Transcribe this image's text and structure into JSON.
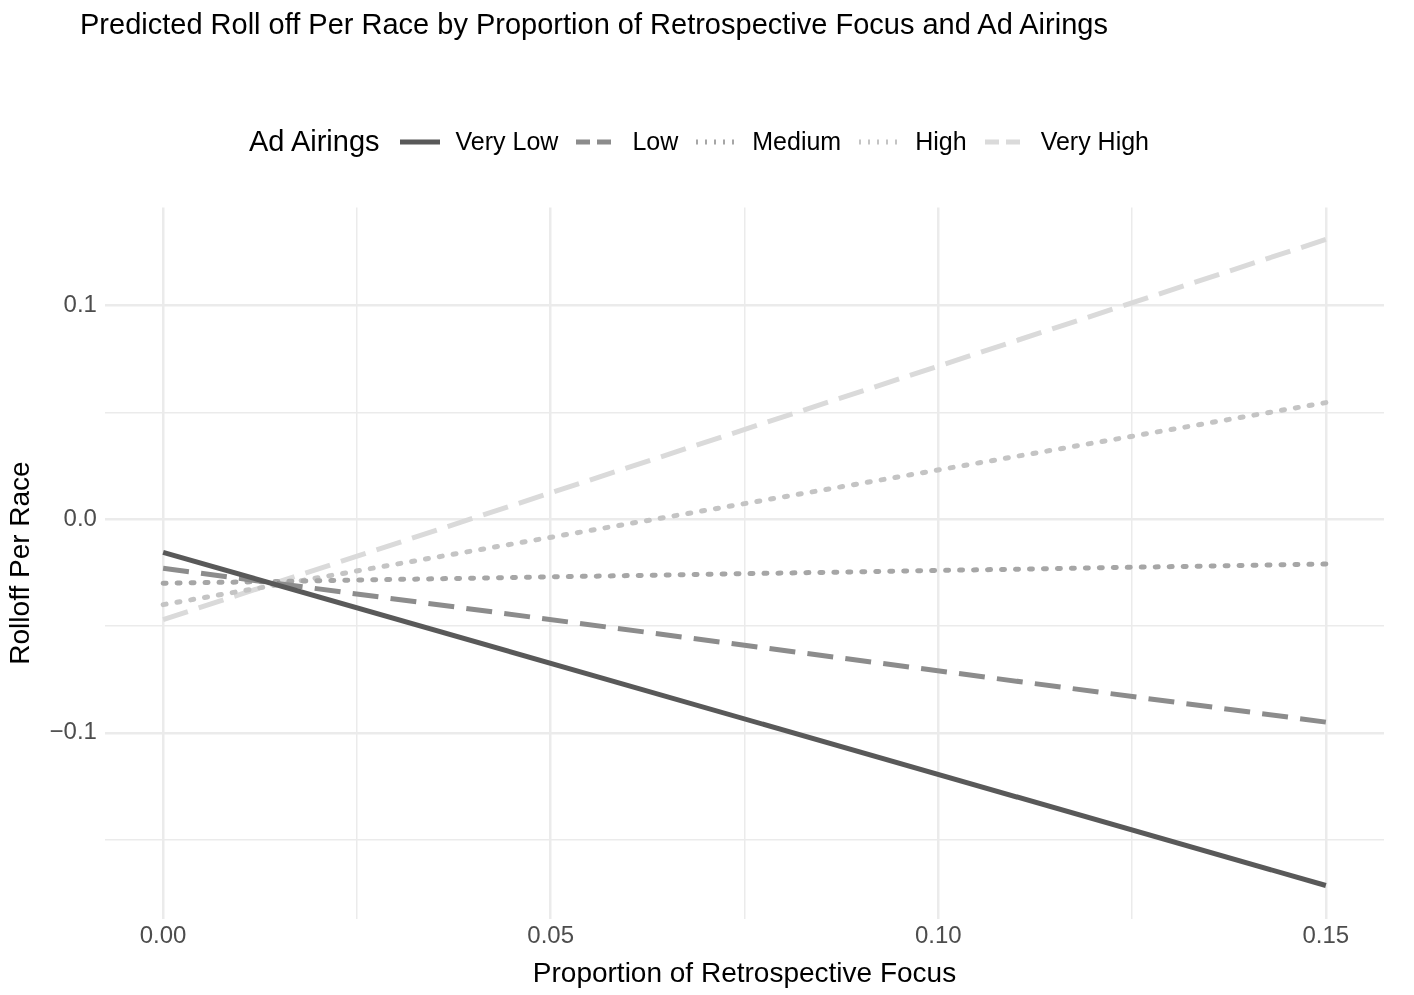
{
  "chart_data": {
    "type": "line",
    "title": "Predicted Roll off Per Race by Proportion of Retrospective Focus and Ad Airings",
    "xlabel": "Proportion of Retrospective Focus",
    "ylabel": "Rolloff Per Race",
    "legend_title": "Ad Airings",
    "x": [
      0,
      0.15
    ],
    "series": [
      {
        "name": "Very Low",
        "color": "#595959",
        "line_style": "solid",
        "values": [
          -0.0155,
          -0.1715
        ]
      },
      {
        "name": "Low",
        "color": "#8c8c8c",
        "line_style": "dashed",
        "values": [
          -0.023,
          -0.095
        ]
      },
      {
        "name": "Medium",
        "color": "#a6a6a6",
        "line_style": "dotted",
        "values": [
          -0.03,
          -0.021
        ]
      },
      {
        "name": "High",
        "color": "#c4c4c4",
        "line_style": "dotted",
        "values": [
          -0.04,
          0.0546
        ]
      },
      {
        "name": "Very High",
        "color": "#dadada",
        "line_style": "dashed",
        "values": [
          -0.047,
          0.131
        ]
      }
    ],
    "xlim": [
      -0.0075,
      0.1575
    ],
    "xticks": [
      {
        "value": 0,
        "label": "0.00"
      },
      {
        "value": 0.025,
        "label": null
      },
      {
        "value": 0.05,
        "label": "0.05"
      },
      {
        "value": 0.075,
        "label": null
      },
      {
        "value": 0.1,
        "label": "0.10"
      },
      {
        "value": 0.125,
        "label": null
      },
      {
        "value": 0.15,
        "label": "0.15"
      }
    ],
    "ylim": [
      -0.187,
      0.146
    ],
    "yticks": [
      {
        "value": -0.15,
        "label": null
      },
      {
        "value": -0.1,
        "label": "−0.1"
      },
      {
        "value": -0.05,
        "label": null
      },
      {
        "value": 0,
        "label": "0.0"
      },
      {
        "value": 0.05,
        "label": null
      },
      {
        "value": 0.1,
        "label": "0.1"
      }
    ],
    "grid": true,
    "legend": "top",
    "marker": "none"
  }
}
